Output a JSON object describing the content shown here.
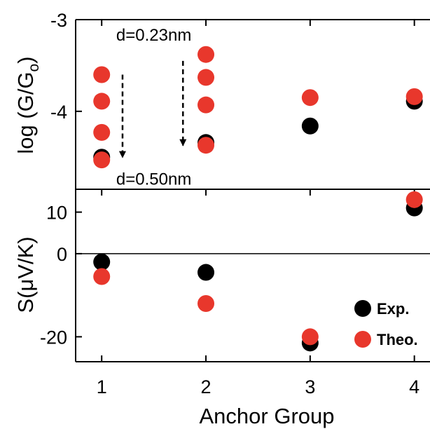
{
  "chart_data": [
    {
      "type": "scatter",
      "panel": "top",
      "ylabel": "log (G/G",
      "ylabel_subscript": "o",
      "ylabel_close": ")",
      "ylim": [
        -4.85,
        -3
      ],
      "xlim": [
        0.75,
        4.15
      ],
      "yticks": [
        -3,
        -4
      ],
      "ytick_labels": [
        "-3",
        "-4"
      ],
      "series": [
        {
          "color": "#000000",
          "points": [
            [
              1,
              -4.5
            ],
            [
              2,
              -4.34
            ],
            [
              3,
              -4.16
            ],
            [
              4,
              -3.89
            ]
          ]
        },
        {
          "color": "#e8372c",
          "points": [
            [
              1,
              -3.6
            ],
            [
              1,
              -3.89
            ],
            [
              1,
              -4.23
            ],
            [
              1,
              -4.53
            ],
            [
              2,
              -3.38
            ],
            [
              2,
              -3.63
            ],
            [
              2,
              -3.93
            ],
            [
              2,
              -4.37
            ],
            [
              3,
              -3.85
            ],
            [
              4,
              -3.84
            ]
          ]
        }
      ],
      "annotations": [
        {
          "text": "d=0.23nm",
          "at": [
            1.5,
            -3.23
          ]
        },
        {
          "text": "d=0.50nm",
          "at": [
            1.5,
            -4.8
          ]
        }
      ],
      "arrows": [
        {
          "x": 1.2,
          "y_from": -3.6,
          "y_to": -4.58
        },
        {
          "x": 1.78,
          "y_from": -3.45,
          "y_to": -4.45
        }
      ]
    },
    {
      "type": "scatter",
      "panel": "bottom",
      "ylabel": "S(μV/K)",
      "xlabel": "Anchor Group",
      "ylim": [
        -26,
        15.5
      ],
      "xlim": [
        0.75,
        4.15
      ],
      "xticks": [
        1,
        2,
        3,
        4
      ],
      "xtick_labels": [
        "1",
        "2",
        "3",
        "4"
      ],
      "yticks": [
        10,
        0,
        -20
      ],
      "ytick_labels": [
        "10",
        "0",
        "-20"
      ],
      "zero_line": true,
      "series": [
        {
          "name": "Exp.",
          "color": "#000000",
          "points": [
            [
              1,
              -2
            ],
            [
              2,
              -4.5
            ],
            [
              3,
              -21.5
            ],
            [
              4,
              11
            ]
          ]
        },
        {
          "name": "Theo.",
          "color": "#e8372c",
          "points": [
            [
              1,
              -5.5
            ],
            [
              2,
              -12
            ],
            [
              3,
              -20
            ],
            [
              4,
              13
            ]
          ]
        }
      ],
      "legend": "bottom-right"
    }
  ]
}
